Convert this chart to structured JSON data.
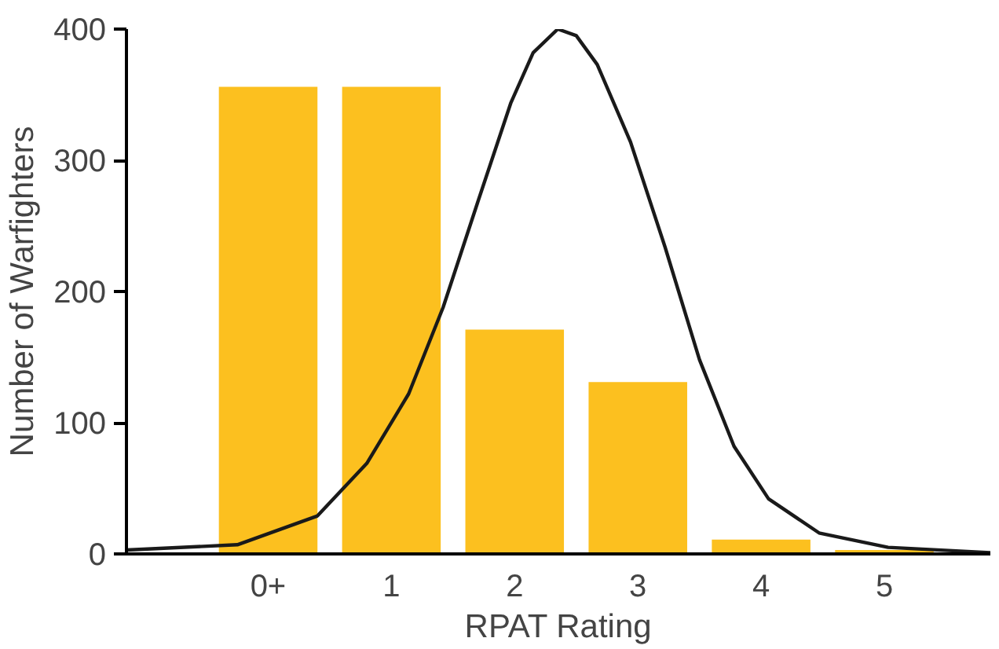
{
  "chart_data": {
    "type": "bar",
    "xlabel": "RPAT Rating",
    "ylabel": "Number of Warfighters",
    "x": [
      0,
      1,
      2,
      3,
      4,
      5
    ],
    "xlim": [
      -1.15,
      5.86
    ],
    "xticks": [
      {
        "value": 0,
        "label": "0+"
      },
      1,
      2,
      3,
      4,
      5
    ],
    "ylim": [
      0,
      400
    ],
    "yticks": [
      0,
      100,
      200,
      300,
      400
    ],
    "grid": false,
    "series": [
      {
        "color": "#fcc01f",
        "values": [
          356,
          356,
          171,
          131,
          11,
          3
        ]
      },
      {
        "type": "line",
        "color": "#1a1a1a",
        "x": [
          -1.15,
          -0.25,
          0.4,
          0.8,
          1.14,
          1.42,
          1.7,
          1.97,
          2.15,
          2.35,
          2.5,
          2.67,
          2.94,
          3.22,
          3.5,
          3.78,
          4.06,
          4.47,
          5.03,
          5.86
        ],
        "values": [
          3,
          7,
          29,
          69,
          122,
          188,
          268,
          344,
          382,
          400,
          395,
          373,
          314,
          234,
          148,
          82,
          42,
          16,
          5,
          1
        ]
      }
    ]
  }
}
